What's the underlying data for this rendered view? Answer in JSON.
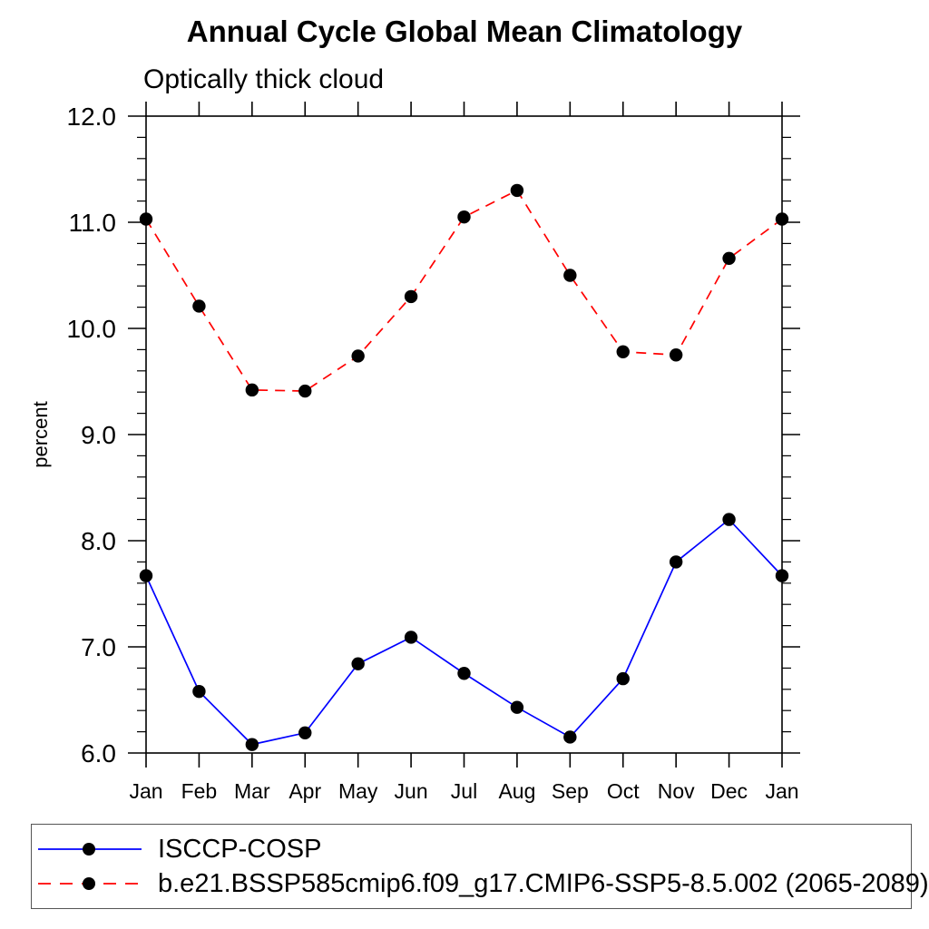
{
  "chart": {
    "title": "Annual Cycle Global Mean Climatology",
    "subtitle": "Optically thick cloud",
    "ylabel": "percent"
  },
  "chart_data": {
    "type": "line",
    "categories": [
      "Jan",
      "Feb",
      "Mar",
      "Apr",
      "May",
      "Jun",
      "Jul",
      "Aug",
      "Sep",
      "Oct",
      "Nov",
      "Dec",
      "Jan"
    ],
    "series": [
      {
        "name": "ISCCP-COSP",
        "color": "#0000ff",
        "line_style": "solid",
        "marker": "filled-circle",
        "marker_color": "#000000",
        "values": [
          7.67,
          6.58,
          6.08,
          6.19,
          6.84,
          7.09,
          6.75,
          6.43,
          6.15,
          6.7,
          7.8,
          8.2,
          7.67
        ]
      },
      {
        "name": "b.e21.BSSP585cmip6.f09_g17.CMIP6-SSP5-8.5.002 (2065-2089)",
        "color": "#ff0000",
        "line_style": "dashed",
        "marker": "filled-circle",
        "marker_color": "#000000",
        "values": [
          11.03,
          10.21,
          9.42,
          9.41,
          9.74,
          10.3,
          11.05,
          11.3,
          10.5,
          9.78,
          9.75,
          10.66,
          11.03
        ]
      }
    ],
    "ylim": [
      6.0,
      12.0
    ],
    "ytick_values": [
      6.0,
      7.0,
      8.0,
      9.0,
      10.0,
      11.0,
      12.0
    ],
    "ytick_labels": [
      "6.0",
      "7.0",
      "8.0",
      "9.0",
      "10.0",
      "11.0",
      "12.0"
    ],
    "ytick_minor_step": 0.2,
    "grid": false,
    "legend_position": "bottom-left",
    "axis_color": "#000000"
  }
}
